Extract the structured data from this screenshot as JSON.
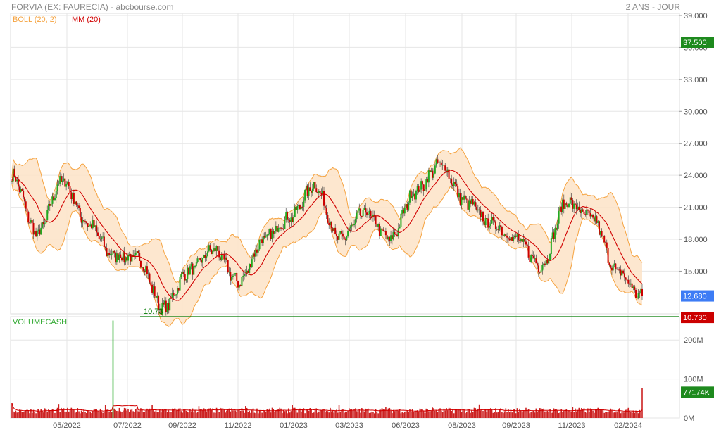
{
  "header": {
    "title": "FORVIA (EX: FAURECIA) - abcbourse.com",
    "period": "2 ANS - JOUR"
  },
  "colors": {
    "up": "#22aa22",
    "down": "#cc0000",
    "boll_fill": "#fde3c7",
    "boll_line": "#f5a340",
    "mm_line": "#d10000",
    "support": "#007a00",
    "last_price_badge": "#3d7cf5",
    "volume_line": "#d10000",
    "volume_bar": "#cc2222",
    "grid": "#e6e6e6"
  },
  "chart_data": [
    {
      "type": "candlestick",
      "title": "FORVIA (EX: FAURECIA) - abcbourse.com",
      "legend": [
        "BOLL (20, 2)",
        "MM (20)"
      ],
      "ylim": [
        11.0,
        39.0
      ],
      "yticks": [
        "39.000",
        "36.000",
        "33.000",
        "30.000",
        "27.000",
        "24.000",
        "21.000",
        "18.000",
        "15.000"
      ],
      "xticks": [
        "05/2022",
        "07/2022",
        "09/2022",
        "11/2022",
        "01/2023",
        "03/2023",
        "06/2023",
        "08/2023",
        "09/2023",
        "11/2023",
        "02/2024"
      ],
      "price_anchors": {
        "x": [
          "04/2022",
          "05/2022",
          "05/2022",
          "06/2022",
          "07/2022",
          "08/2022",
          "09/2022",
          "10/2022",
          "11/2022",
          "12/2022",
          "01/2023",
          "02/2023",
          "03/2023",
          "04/2023",
          "05/2023",
          "06/2023",
          "07/2023",
          "08/2023",
          "08/2023",
          "09/2023",
          "10/2023",
          "11/2023",
          "12/2023",
          "01/2024",
          "02/2024",
          "03/2024"
        ],
        "y": [
          24.0,
          18.5,
          23.5,
          19.5,
          16.5,
          16.2,
          11.5,
          15.0,
          17.0,
          14.0,
          18.0,
          20.0,
          23.0,
          18.0,
          20.5,
          18.0,
          22.5,
          25.0,
          21.5,
          19.5,
          18.0,
          15.5,
          21.5,
          20.0,
          15.0,
          12.6
        ]
      },
      "last_price": "37.500",
      "current_price": "12.680",
      "support": {
        "value": 10.73,
        "label": "10.73",
        "badge": "10.730"
      }
    },
    {
      "type": "bar",
      "title": "VOLUMECASH",
      "yticks": [
        "200M",
        "100M",
        "0M"
      ],
      "ylim": [
        0,
        260
      ],
      "last_value": "77174K",
      "peak": {
        "x": "05/2022",
        "value": 250
      }
    }
  ]
}
